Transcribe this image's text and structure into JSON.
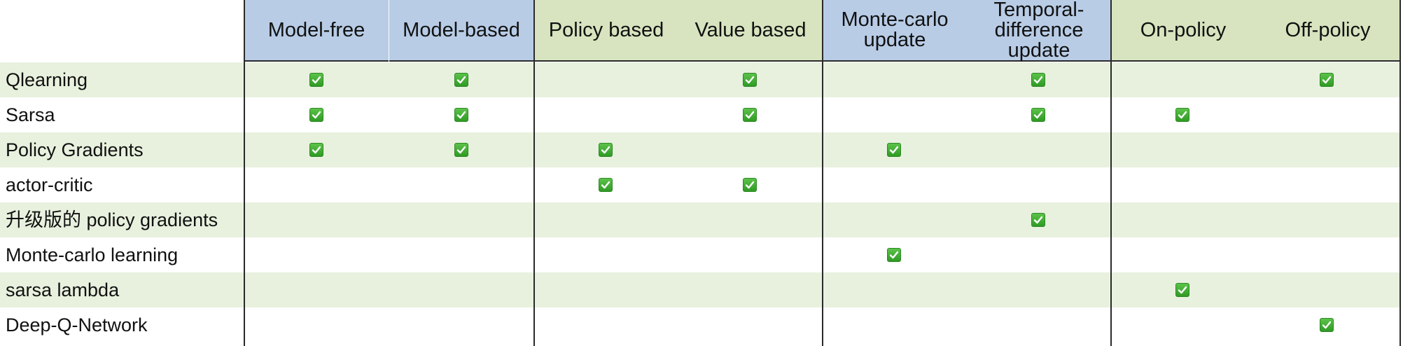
{
  "columns": [
    {
      "label": "Model-free",
      "lines": [
        "Model-free"
      ]
    },
    {
      "label": "Model-based",
      "lines": [
        "Model-based"
      ]
    },
    {
      "label": "Policy based",
      "lines": [
        "Policy based"
      ]
    },
    {
      "label": "Value based",
      "lines": [
        "Value based"
      ]
    },
    {
      "label": "Monte-carlo update",
      "lines": [
        "Monte-carlo",
        "update"
      ]
    },
    {
      "label": "Temporal-difference update",
      "lines": [
        "Temporal-",
        "difference",
        "update"
      ]
    },
    {
      "label": "On-policy",
      "lines": [
        "On-policy"
      ]
    },
    {
      "label": "Off-policy",
      "lines": [
        "Off-policy"
      ]
    }
  ],
  "header_groups": [
    {
      "columns": [
        0,
        1
      ],
      "color": "#b8cce6"
    },
    {
      "columns": [
        2,
        3
      ],
      "color": "#d7e4bf"
    },
    {
      "columns": [
        4,
        5
      ],
      "color": "#b8cce6"
    },
    {
      "columns": [
        6,
        7
      ],
      "color": "#d7e4bf"
    }
  ],
  "rows": [
    {
      "label": "Qlearning",
      "checks": [
        true,
        true,
        false,
        true,
        false,
        true,
        false,
        true
      ]
    },
    {
      "label": "Sarsa",
      "checks": [
        true,
        true,
        false,
        true,
        false,
        true,
        true,
        false
      ]
    },
    {
      "label": "Policy Gradients",
      "checks": [
        true,
        true,
        true,
        false,
        true,
        false,
        false,
        false
      ]
    },
    {
      "label": "actor-critic",
      "checks": [
        false,
        false,
        true,
        true,
        false,
        false,
        false,
        false
      ]
    },
    {
      "label": "升级版的 policy gradients",
      "checks": [
        false,
        false,
        false,
        false,
        false,
        true,
        false,
        false
      ]
    },
    {
      "label": "Monte-carlo learning",
      "checks": [
        false,
        false,
        false,
        false,
        true,
        false,
        false,
        false
      ]
    },
    {
      "label": "sarsa lambda",
      "checks": [
        false,
        false,
        false,
        false,
        false,
        false,
        true,
        false
      ]
    },
    {
      "label": "Deep-Q-Network",
      "checks": [
        false,
        false,
        false,
        false,
        false,
        false,
        false,
        true
      ]
    }
  ],
  "icons": {
    "check": "checkbox-checked-icon"
  },
  "colors": {
    "row_shade": "#e8f1de",
    "check_green": "#3aa82e",
    "header_blue": "#b8cce6",
    "header_green": "#d7e4bf"
  }
}
